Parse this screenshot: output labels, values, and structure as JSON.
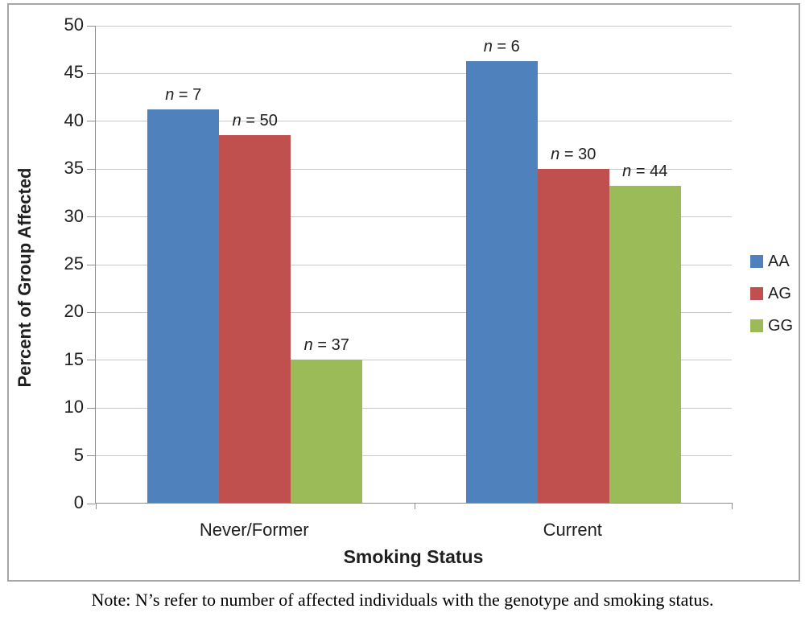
{
  "chart_data": {
    "type": "bar",
    "categories": [
      "Never/Former",
      "Current"
    ],
    "series": [
      {
        "name": "AA",
        "color": "#4F81BD",
        "values": [
          41.2,
          46.2
        ],
        "bar_labels": [
          "n = 7",
          "n = 6"
        ]
      },
      {
        "name": "AG",
        "color": "#C0504D",
        "values": [
          38.5,
          34.9
        ],
        "bar_labels": [
          "n = 50",
          "n = 30"
        ]
      },
      {
        "name": "GG",
        "color": "#9BBB59",
        "values": [
          15.0,
          33.2
        ],
        "bar_labels": [
          "n = 37",
          "n = 44"
        ]
      }
    ],
    "xlabel": "Smoking Status",
    "ylabel": "Percent of Group Affected",
    "ylim": [
      0,
      50
    ],
    "ytick_step": 5,
    "ytick_labels": [
      "0",
      "5",
      "10",
      "15",
      "20",
      "25",
      "30",
      "35",
      "40",
      "45",
      "50"
    ],
    "grid": true,
    "legend_position": "right",
    "legend_entries": [
      "AA",
      "AG",
      "GG"
    ]
  },
  "colors": {
    "series_aa": "#4F81BD",
    "series_ag": "#C0504D",
    "series_gg": "#9BBB59",
    "gridline": "#C9C9C9",
    "axis": "#8E8E8E",
    "frame_border": "#A6A6A6",
    "text": "#1F1F1F",
    "background": "#FFFFFF"
  },
  "note": "Note: N’s refer to number of affected individuals with the genotype and smoking status."
}
